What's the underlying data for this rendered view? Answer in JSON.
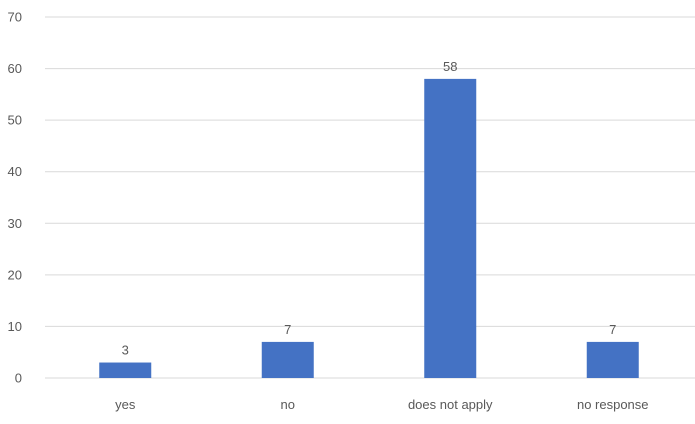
{
  "chart_data": {
    "type": "bar",
    "title": "",
    "xlabel": "",
    "ylabel": "",
    "categories": [
      "yes",
      "no",
      "does not apply",
      "no response"
    ],
    "values": [
      3,
      7,
      58,
      7
    ],
    "data_labels": [
      "3",
      "7",
      "58",
      "7"
    ],
    "ylim": [
      0,
      70
    ],
    "yticks": [
      0,
      10,
      20,
      30,
      40,
      50,
      60,
      70
    ],
    "grid": true,
    "legend": "none",
    "bar_color": "#4472C4",
    "grid_color": "#D9D9D9",
    "text_color": "#595959"
  }
}
